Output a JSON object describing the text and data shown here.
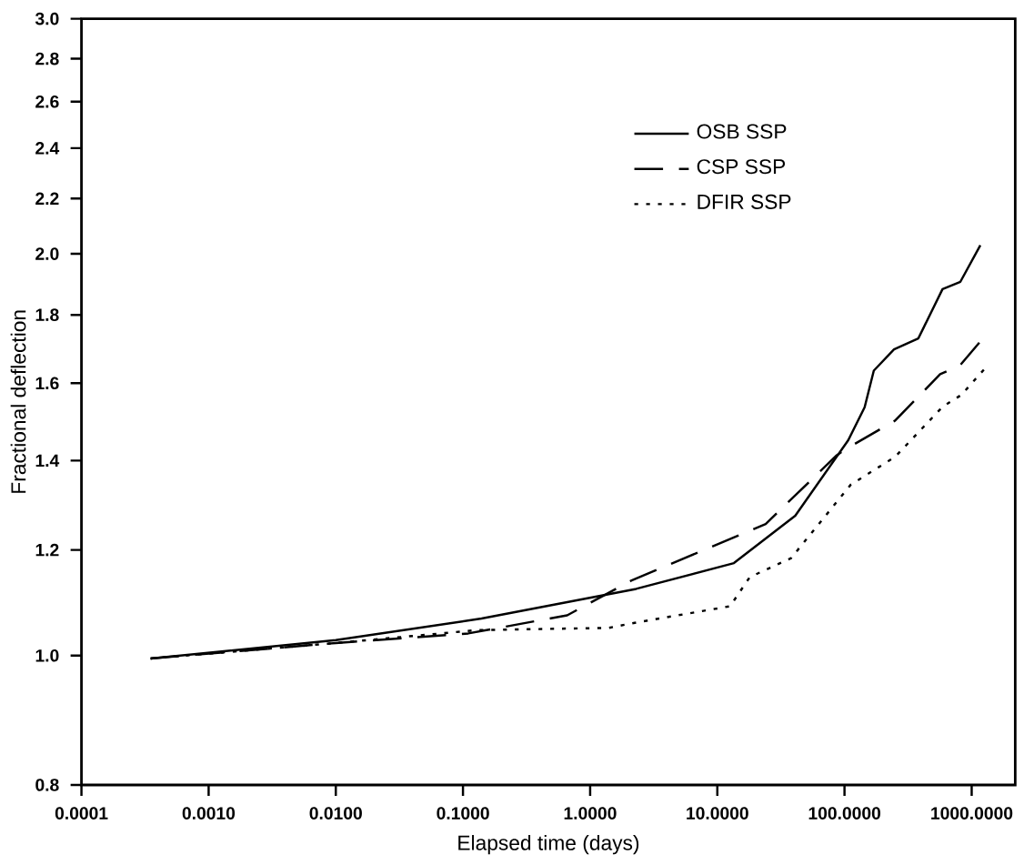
{
  "chart_data": {
    "type": "line",
    "xlabel": "Elapsed time (days)",
    "ylabel": "Fractional deflection",
    "log": "xy",
    "xlim": [
      0.0001,
      2200
    ],
    "ylim": [
      0.8,
      3.0
    ],
    "xticks": [
      {
        "value": 0.0001,
        "label": "0.0001"
      },
      {
        "value": 0.001,
        "label": "0.0010"
      },
      {
        "value": 0.01,
        "label": "0.0100"
      },
      {
        "value": 0.1,
        "label": "0.1000"
      },
      {
        "value": 1,
        "label": "1.0000"
      },
      {
        "value": 10,
        "label": "10.0000"
      },
      {
        "value": 100,
        "label": "100.0000"
      },
      {
        "value": 1000,
        "label": "1000.0000"
      }
    ],
    "yticks": [
      {
        "value": 0.8,
        "label": "0.8"
      },
      {
        "value": 1.0,
        "label": "1.0"
      },
      {
        "value": 1.2,
        "label": "1.2"
      },
      {
        "value": 1.4,
        "label": "1.4"
      },
      {
        "value": 1.6,
        "label": "1.6"
      },
      {
        "value": 1.8,
        "label": "1.8"
      },
      {
        "value": 2.0,
        "label": "2.0"
      },
      {
        "value": 2.2,
        "label": "2.2"
      },
      {
        "value": 2.4,
        "label": "2.4"
      },
      {
        "value": 2.6,
        "label": "2.6"
      },
      {
        "value": 2.8,
        "label": "2.8"
      },
      {
        "value": 3.0,
        "label": "3.0"
      }
    ],
    "legend": "top right",
    "grid": false,
    "marker": "none",
    "series": [
      {
        "name": "OSB SSP",
        "color": "#000000",
        "line_style": "solid",
        "x": [
          0.00035,
          0.01,
          0.14,
          2.3,
          13.5,
          41,
          107,
          144,
          170,
          245,
          380,
          590,
          815,
          1170
        ],
        "values": [
          0.995,
          1.027,
          1.066,
          1.122,
          1.173,
          1.273,
          1.45,
          1.535,
          1.635,
          1.696,
          1.728,
          1.882,
          1.906,
          2.03
        ]
      },
      {
        "name": "CSP SSP",
        "color": "#000000",
        "line_style": "dashed",
        "x": [
          0.00035,
          0.01,
          0.11,
          0.66,
          2.1,
          24,
          87,
          105,
          250,
          565,
          810,
          1210
        ],
        "values": [
          0.995,
          1.022,
          1.039,
          1.072,
          1.138,
          1.255,
          1.413,
          1.43,
          1.5,
          1.625,
          1.65,
          1.726
        ]
      },
      {
        "name": "DFIR SSP",
        "color": "#000000",
        "line_style": "dotted",
        "x": [
          0.00035,
          0.01,
          0.13,
          1.4,
          2.1,
          12.6,
          18,
          38,
          112,
          250,
          590,
          830,
          1300
        ],
        "values": [
          0.995,
          1.022,
          1.045,
          1.049,
          1.057,
          1.089,
          1.145,
          1.183,
          1.343,
          1.409,
          1.536,
          1.568,
          1.645
        ]
      }
    ]
  }
}
